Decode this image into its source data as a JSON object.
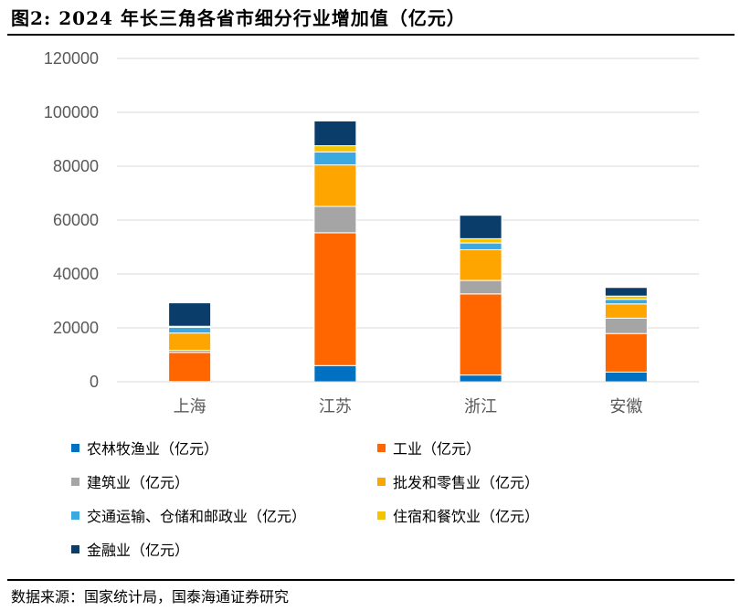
{
  "figure": {
    "title": "图2:  2024 年长三角各省市细分行业增加值（亿元）",
    "source": "数据来源：国家统计局，国泰海通证券研究"
  },
  "chart_data": {
    "type": "bar",
    "stacked": true,
    "categories": [
      "上海",
      "江苏",
      "浙江",
      "安徽"
    ],
    "ylim": [
      0,
      120000
    ],
    "yticks": [
      0,
      20000,
      40000,
      60000,
      80000,
      100000,
      120000
    ],
    "ytick_labels": [
      "0",
      "20000",
      "40000",
      "60000",
      "80000",
      "100000",
      "120000"
    ],
    "legend_position": "bottom",
    "series": [
      {
        "name": "农林牧渔业（亿元）",
        "color": "#0070C0",
        "values": [
          100,
          6000,
          2500,
          3600
        ]
      },
      {
        "name": "工业（亿元）",
        "color": "#FF6600",
        "values": [
          10800,
          49300,
          30100,
          14300
        ]
      },
      {
        "name": "建筑业（亿元）",
        "color": "#A5A5A5",
        "values": [
          800,
          9800,
          5000,
          5700
        ]
      },
      {
        "name": "批发和零售业（亿元）",
        "color": "#FFA500",
        "values": [
          6400,
          15400,
          11400,
          5300
        ]
      },
      {
        "name": "交通运输、仓储和邮政业（亿元）",
        "color": "#3CA8E0",
        "values": [
          2100,
          4800,
          2500,
          1700
        ]
      },
      {
        "name": "住宿和餐饮业（亿元）",
        "color": "#F5C400",
        "values": [
          400,
          2300,
          1600,
          1200
        ]
      },
      {
        "name": "金融业（亿元）",
        "color": "#0B3D6B",
        "values": [
          8700,
          9200,
          8700,
          3200
        ]
      }
    ]
  }
}
